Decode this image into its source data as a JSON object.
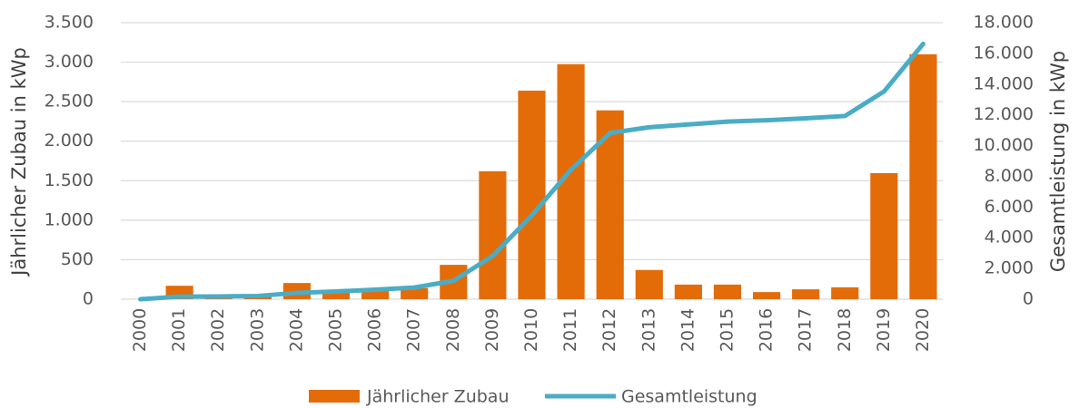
{
  "chart_data": {
    "type": "bar_line",
    "categories": [
      "2000",
      "2001",
      "2002",
      "2003",
      "2004",
      "2005",
      "2006",
      "2007",
      "2008",
      "2009",
      "2010",
      "2011",
      "2012",
      "2013",
      "2014",
      "2015",
      "2016",
      "2017",
      "2018",
      "2019",
      "2020"
    ],
    "series": [
      {
        "name": "Jährlicher Zubau",
        "color": "#e36c09",
        "type": "bar",
        "axis": "y",
        "values": [
          0,
          170,
          10,
          30,
          205,
          90,
          115,
          140,
          435,
          1620,
          2640,
          2975,
          2390,
          370,
          185,
          185,
          90,
          125,
          150,
          1595,
          3100
        ]
      },
      {
        "name": "Gesamtleistung",
        "color": "#4bacc6",
        "type": "line",
        "axis": "y2",
        "values": [
          0,
          170,
          180,
          210,
          415,
          505,
          620,
          760,
          1195,
          2815,
          5455,
          8430,
          10820,
          11190,
          11375,
          11560,
          11650,
          11775,
          11925,
          13520,
          16620
        ]
      }
    ],
    "ylabel": "Jährlicher Zubau in kWp",
    "y2label": "Gesamtleistung in kWp",
    "ylim": [
      0,
      3500
    ],
    "yticks": [
      0,
      500,
      {
        "value": 1000,
        "label": "1.000"
      },
      {
        "value": 1500,
        "label": "1.500"
      },
      {
        "value": 2000,
        "label": "2.000"
      },
      {
        "value": 2500,
        "label": "2.500"
      },
      {
        "value": 3000,
        "label": "3.000"
      },
      {
        "value": 3500,
        "label": "3.500"
      }
    ],
    "y2lim": [
      0,
      18000
    ],
    "y2ticks": [
      0,
      {
        "value": 2000,
        "label": "2.000"
      },
      {
        "value": 4000,
        "label": "4.000"
      },
      {
        "value": 6000,
        "label": "6.000"
      },
      {
        "value": 8000,
        "label": "8.000"
      },
      {
        "value": 10000,
        "label": "10.000"
      },
      {
        "value": 12000,
        "label": "12.000"
      },
      {
        "value": 14000,
        "label": "14.000"
      },
      {
        "value": 16000,
        "label": "16.000"
      },
      {
        "value": 18000,
        "label": "18.000"
      }
    ],
    "grid": true,
    "legend": "bottom"
  }
}
